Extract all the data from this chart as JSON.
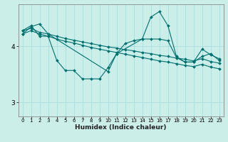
{
  "xlabel": "Humidex (Indice chaleur)",
  "bg_color": "#cceee8",
  "grid_color": "#aadddd",
  "line_color": "#007070",
  "xlim": [
    -0.5,
    23.5
  ],
  "ylim": [
    2.75,
    4.75
  ],
  "yticks": [
    3,
    4
  ],
  "xticks": [
    0,
    1,
    2,
    3,
    4,
    5,
    6,
    7,
    8,
    9,
    10,
    11,
    12,
    13,
    14,
    15,
    16,
    17,
    18,
    19,
    20,
    21,
    22,
    23
  ],
  "series": [
    {
      "x": [
        0,
        1,
        2,
        3,
        4,
        5,
        6,
        7,
        8,
        9,
        10,
        11,
        12,
        13,
        14,
        15,
        16,
        17,
        18,
        19,
        20,
        21,
        22,
        23
      ],
      "y": [
        4.28,
        4.37,
        4.18,
        4.18,
        3.75,
        3.57,
        3.57,
        3.42,
        3.42,
        3.42,
        3.62,
        3.87,
        4.05,
        4.1,
        4.13,
        4.13,
        4.13,
        4.1,
        3.8,
        3.72,
        3.72,
        3.95,
        3.85,
        3.78
      ]
    },
    {
      "x": [
        0,
        1,
        2,
        3,
        4,
        5,
        6,
        7,
        8,
        9,
        10,
        11,
        12,
        13,
        14,
        15,
        16,
        17,
        18,
        19,
        20,
        21,
        22,
        23
      ],
      "y": [
        4.28,
        4.32,
        4.25,
        4.22,
        4.18,
        4.14,
        4.11,
        4.08,
        4.05,
        4.02,
        3.99,
        3.97,
        3.94,
        3.92,
        3.89,
        3.87,
        3.84,
        3.82,
        3.79,
        3.77,
        3.74,
        3.78,
        3.73,
        3.7
      ]
    },
    {
      "x": [
        0,
        1,
        2,
        3,
        10,
        11,
        14,
        15,
        16,
        17,
        18,
        19,
        20,
        21,
        22,
        23
      ],
      "y": [
        4.22,
        4.35,
        4.4,
        4.22,
        3.55,
        3.87,
        4.13,
        4.52,
        4.62,
        4.37,
        3.82,
        3.72,
        3.72,
        3.82,
        3.87,
        3.75
      ]
    },
    {
      "x": [
        0,
        1,
        2,
        3,
        4,
        5,
        6,
        7,
        8,
        9,
        10,
        11,
        12,
        13,
        14,
        15,
        16,
        17,
        18,
        19,
        20,
        21,
        22,
        23
      ],
      "y": [
        4.22,
        4.28,
        4.22,
        4.18,
        4.13,
        4.09,
        4.06,
        4.02,
        3.98,
        3.95,
        3.92,
        3.89,
        3.86,
        3.83,
        3.8,
        3.77,
        3.74,
        3.72,
        3.69,
        3.66,
        3.64,
        3.68,
        3.63,
        3.6
      ]
    }
  ]
}
